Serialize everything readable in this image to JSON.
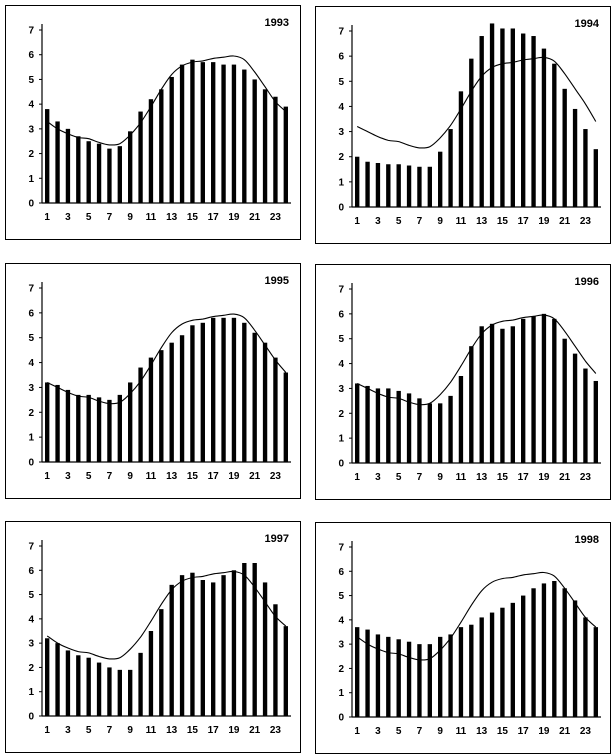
{
  "chart_data": [
    {
      "type": "bar",
      "title": "1993",
      "xlabel": "",
      "ylabel": "",
      "ylim": [
        0,
        7
      ],
      "x": [
        1,
        2,
        3,
        4,
        5,
        6,
        7,
        8,
        9,
        10,
        11,
        12,
        13,
        14,
        15,
        16,
        17,
        18,
        19,
        20,
        21,
        22,
        23,
        24
      ],
      "x_tick_labels": [
        "1",
        "3",
        "5",
        "7",
        "9",
        "11",
        "13",
        "15",
        "17",
        "19",
        "21",
        "23"
      ],
      "y_tick_labels": [
        "0",
        "1",
        "2",
        "3",
        "4",
        "5",
        "6",
        "7"
      ],
      "series": [
        {
          "type": "bar",
          "values": [
            3.8,
            3.3,
            3.0,
            2.7,
            2.5,
            2.4,
            2.2,
            2.3,
            2.9,
            3.7,
            4.2,
            4.6,
            5.1,
            5.6,
            5.8,
            5.7,
            5.7,
            5.6,
            5.6,
            5.4,
            5.0,
            4.6,
            4.3,
            3.9
          ]
        },
        {
          "type": "line",
          "values": [
            3.3,
            3.0,
            2.8,
            2.65,
            2.6,
            2.45,
            2.35,
            2.4,
            2.75,
            3.25,
            3.9,
            4.6,
            5.2,
            5.55,
            5.7,
            5.75,
            5.85,
            5.9,
            5.95,
            5.8,
            5.3,
            4.7,
            4.1,
            3.7
          ]
        }
      ]
    },
    {
      "type": "bar",
      "title": "1994",
      "xlabel": "",
      "ylabel": "",
      "ylim": [
        0,
        7
      ],
      "x": [
        1,
        2,
        3,
        4,
        5,
        6,
        7,
        8,
        9,
        10,
        11,
        12,
        13,
        14,
        15,
        16,
        17,
        18,
        19,
        20,
        21,
        22,
        23,
        24
      ],
      "x_tick_labels": [
        "1",
        "3",
        "5",
        "7",
        "9",
        "11",
        "13",
        "15",
        "17",
        "19",
        "21",
        "23"
      ],
      "y_tick_labels": [
        "0",
        "1",
        "2",
        "3",
        "4",
        "5",
        "6",
        "7"
      ],
      "series": [
        {
          "type": "bar",
          "values": [
            2.0,
            1.8,
            1.75,
            1.7,
            1.7,
            1.65,
            1.6,
            1.6,
            2.2,
            3.1,
            4.6,
            5.9,
            6.8,
            7.3,
            7.1,
            7.1,
            6.9,
            6.8,
            6.3,
            5.7,
            4.7,
            3.9,
            3.1,
            2.3
          ]
        },
        {
          "type": "line",
          "values": [
            3.2,
            3.0,
            2.8,
            2.65,
            2.6,
            2.45,
            2.35,
            2.4,
            2.75,
            3.25,
            3.9,
            4.6,
            5.2,
            5.55,
            5.7,
            5.75,
            5.85,
            5.9,
            5.95,
            5.8,
            5.3,
            4.7,
            4.1,
            3.4
          ]
        }
      ]
    },
    {
      "type": "bar",
      "title": "1995",
      "xlabel": "",
      "ylabel": "",
      "ylim": [
        0,
        7
      ],
      "x": [
        1,
        2,
        3,
        4,
        5,
        6,
        7,
        8,
        9,
        10,
        11,
        12,
        13,
        14,
        15,
        16,
        17,
        18,
        19,
        20,
        21,
        22,
        23,
        24
      ],
      "x_tick_labels": [
        "1",
        "3",
        "5",
        "7",
        "9",
        "11",
        "13",
        "15",
        "17",
        "19",
        "21",
        "23"
      ],
      "y_tick_labels": [
        "0",
        "1",
        "2",
        "3",
        "4",
        "5",
        "6",
        "7"
      ],
      "series": [
        {
          "type": "bar",
          "values": [
            3.2,
            3.1,
            2.9,
            2.7,
            2.7,
            2.6,
            2.5,
            2.7,
            3.2,
            3.8,
            4.2,
            4.5,
            4.8,
            5.1,
            5.5,
            5.6,
            5.8,
            5.8,
            5.8,
            5.6,
            5.2,
            4.8,
            4.2,
            3.6
          ]
        },
        {
          "type": "line",
          "values": [
            3.2,
            3.0,
            2.8,
            2.65,
            2.6,
            2.45,
            2.35,
            2.4,
            2.75,
            3.25,
            3.9,
            4.6,
            5.2,
            5.55,
            5.7,
            5.75,
            5.85,
            5.9,
            5.95,
            5.8,
            5.3,
            4.7,
            4.1,
            3.6
          ]
        }
      ]
    },
    {
      "type": "bar",
      "title": "1996",
      "xlabel": "",
      "ylabel": "",
      "ylim": [
        0,
        7
      ],
      "x": [
        1,
        2,
        3,
        4,
        5,
        6,
        7,
        8,
        9,
        10,
        11,
        12,
        13,
        14,
        15,
        16,
        17,
        18,
        19,
        20,
        21,
        22,
        23,
        24
      ],
      "x_tick_labels": [
        "1",
        "3",
        "5",
        "7",
        "9",
        "11",
        "13",
        "15",
        "17",
        "19",
        "21",
        "23"
      ],
      "y_tick_labels": [
        "0",
        "1",
        "2",
        "3",
        "4",
        "5",
        "6",
        "7"
      ],
      "series": [
        {
          "type": "bar",
          "values": [
            3.2,
            3.1,
            3.0,
            3.0,
            2.9,
            2.8,
            2.6,
            2.4,
            2.4,
            2.7,
            3.5,
            4.7,
            5.5,
            5.6,
            5.4,
            5.5,
            5.8,
            5.9,
            6.0,
            5.8,
            5.0,
            4.4,
            3.8,
            3.3
          ]
        },
        {
          "type": "line",
          "values": [
            3.2,
            3.0,
            2.8,
            2.65,
            2.6,
            2.45,
            2.35,
            2.4,
            2.75,
            3.25,
            3.9,
            4.6,
            5.2,
            5.55,
            5.7,
            5.75,
            5.85,
            5.9,
            5.95,
            5.8,
            5.3,
            4.7,
            4.1,
            3.6
          ]
        }
      ]
    },
    {
      "type": "bar",
      "title": "1997",
      "xlabel": "",
      "ylabel": "",
      "ylim": [
        0,
        7
      ],
      "x": [
        1,
        2,
        3,
        4,
        5,
        6,
        7,
        8,
        9,
        10,
        11,
        12,
        13,
        14,
        15,
        16,
        17,
        18,
        19,
        20,
        21,
        22,
        23,
        24
      ],
      "x_tick_labels": [
        "1",
        "3",
        "5",
        "7",
        "9",
        "11",
        "13",
        "15",
        "17",
        "19",
        "21",
        "23"
      ],
      "y_tick_labels": [
        "0",
        "1",
        "2",
        "3",
        "4",
        "5",
        "6",
        "7"
      ],
      "series": [
        {
          "type": "bar",
          "values": [
            3.2,
            3.0,
            2.7,
            2.5,
            2.4,
            2.2,
            2.0,
            1.9,
            1.9,
            2.6,
            3.5,
            4.4,
            5.4,
            5.8,
            5.9,
            5.6,
            5.5,
            5.8,
            6.0,
            6.3,
            6.3,
            5.5,
            4.6,
            3.7
          ]
        },
        {
          "type": "line",
          "values": [
            3.3,
            3.0,
            2.8,
            2.65,
            2.6,
            2.45,
            2.35,
            2.4,
            2.75,
            3.25,
            3.9,
            4.6,
            5.2,
            5.55,
            5.7,
            5.75,
            5.85,
            5.9,
            5.95,
            5.8,
            5.3,
            4.7,
            4.1,
            3.7
          ]
        }
      ]
    },
    {
      "type": "bar",
      "title": "1998",
      "xlabel": "",
      "ylabel": "",
      "ylim": [
        0,
        7
      ],
      "x": [
        1,
        2,
        3,
        4,
        5,
        6,
        7,
        8,
        9,
        10,
        11,
        12,
        13,
        14,
        15,
        16,
        17,
        18,
        19,
        20,
        21,
        22,
        23,
        24
      ],
      "x_tick_labels": [
        "1",
        "3",
        "5",
        "7",
        "9",
        "11",
        "13",
        "15",
        "17",
        "19",
        "21",
        "23"
      ],
      "y_tick_labels": [
        "0",
        "1",
        "2",
        "3",
        "4",
        "5",
        "6",
        "7"
      ],
      "series": [
        {
          "type": "bar",
          "values": [
            3.7,
            3.6,
            3.4,
            3.3,
            3.2,
            3.1,
            3.0,
            3.0,
            3.3,
            3.4,
            3.7,
            3.8,
            4.1,
            4.3,
            4.5,
            4.7,
            5.0,
            5.3,
            5.5,
            5.6,
            5.3,
            4.8,
            4.1,
            3.7
          ]
        },
        {
          "type": "line",
          "values": [
            3.3,
            3.0,
            2.8,
            2.65,
            2.6,
            2.45,
            2.35,
            2.4,
            2.75,
            3.25,
            3.9,
            4.6,
            5.2,
            5.55,
            5.7,
            5.75,
            5.85,
            5.9,
            5.95,
            5.8,
            5.3,
            4.7,
            4.1,
            3.7
          ]
        }
      ]
    }
  ]
}
